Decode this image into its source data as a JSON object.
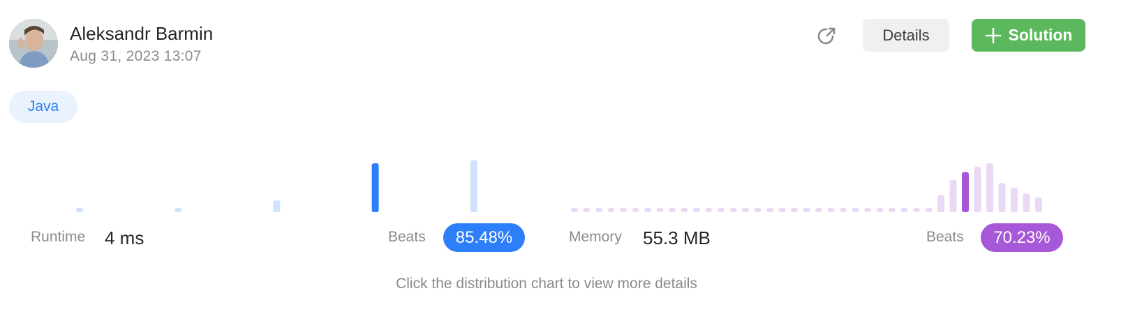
{
  "user": {
    "name": "Aleksandr Barmin",
    "date": "Aug 31, 2023 13:07"
  },
  "actions": {
    "share_icon": "share-icon",
    "details_label": "Details",
    "solution_label": "Solution",
    "plus_icon": "plus-icon"
  },
  "language": "Java",
  "runtime": {
    "label": "Runtime",
    "value": "4 ms",
    "beats_label": "Beats",
    "beats_value": "85.48%"
  },
  "memory": {
    "label": "Memory",
    "value": "55.3 MB",
    "beats_label": "Beats",
    "beats_value": "70.23%"
  },
  "hint": "Click the distribution chart to view more details",
  "colors": {
    "runtime_active": "#2d7ff9",
    "runtime_inactive": "#cfe2fc",
    "memory_active": "#a658d8",
    "memory_inactive": "#ead9f5",
    "solution_button": "#5cb85c",
    "java_tag_bg": "#eaf2fe",
    "java_tag_text": "#2d7ff9"
  },
  "chart_data": [
    {
      "type": "bar",
      "name": "runtime-distribution",
      "values": [
        0.06,
        0.06,
        0.24,
        1.0,
        1.06
      ],
      "highlight_index": 3
    },
    {
      "type": "bar",
      "name": "memory-distribution",
      "values": [
        0.06,
        0.06,
        0.06,
        0.06,
        0.06,
        0.06,
        0.06,
        0.06,
        0.06,
        0.06,
        0.06,
        0.06,
        0.06,
        0.06,
        0.06,
        0.06,
        0.06,
        0.06,
        0.06,
        0.06,
        0.06,
        0.06,
        0.06,
        0.06,
        0.06,
        0.06,
        0.06,
        0.06,
        0.06,
        0.06,
        0.35,
        0.66,
        0.82,
        0.93,
        1.0,
        0.6,
        0.5,
        0.38,
        0.3
      ],
      "highlight_index": 32
    }
  ]
}
